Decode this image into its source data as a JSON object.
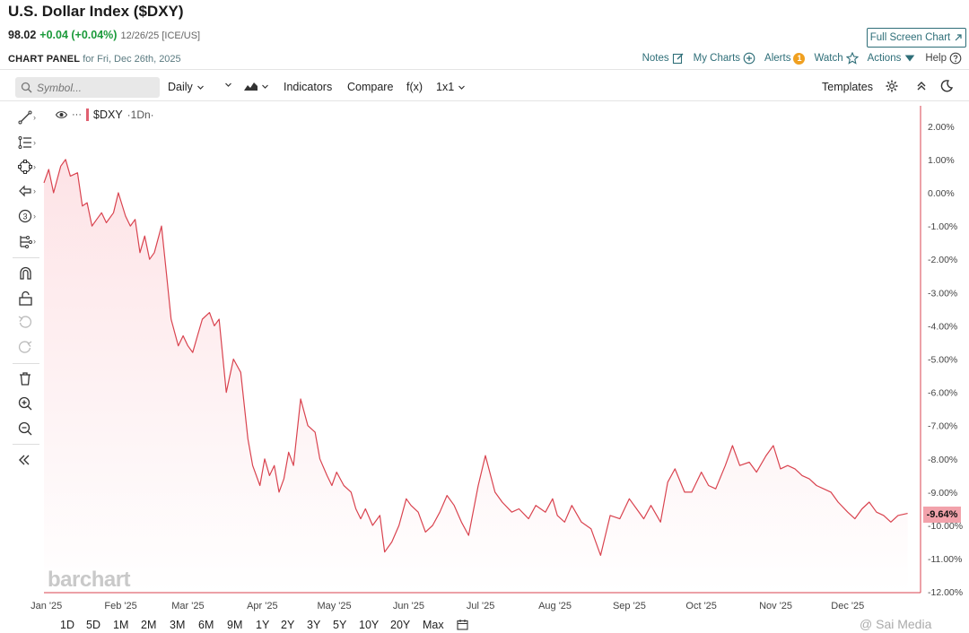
{
  "header": {
    "title": "U.S. Dollar Index ($DXY)",
    "last": "98.02",
    "change": "+0.04 (+0.04%)",
    "meta": "12/26/25 [ICE/US]",
    "fullscreen_label": "Full Screen Chart"
  },
  "panel": {
    "title": "CHART PANEL",
    "subtitle": "for Fri, Dec 26th, 2025",
    "links": {
      "notes": "Notes",
      "my_charts": "My Charts",
      "alerts": "Alerts",
      "alerts_count": "1",
      "watch": "Watch",
      "actions": "Actions",
      "help": "Help"
    }
  },
  "toolbar": {
    "symbol_placeholder": "Symbol...",
    "interval": "Daily",
    "indicators": "Indicators",
    "compare": "Compare",
    "fx": "f(x)",
    "layout": "1x1",
    "templates": "Templates"
  },
  "legend": {
    "symbol": "$DXY",
    "interval": "·1Dn·"
  },
  "watermark": "barchart",
  "price_tag": "-9.64%",
  "ranges": [
    "1D",
    "5D",
    "1M",
    "2M",
    "3M",
    "6M",
    "9M",
    "1Y",
    "2Y",
    "3Y",
    "5Y",
    "10Y",
    "20Y",
    "Max"
  ],
  "credit": "@ Sai Media",
  "colors": {
    "line": "#d9434f",
    "fill_top": "#fde3e6",
    "accent": "#2e6e78",
    "positive": "#1a9a3a"
  },
  "chart_data": {
    "type": "area",
    "title": "",
    "xlabel": "",
    "ylabel": "",
    "y_unit": "%",
    "ylim": [
      -12,
      2.5
    ],
    "y_ticks": [
      "2.00%",
      "1.00%",
      "0.00%",
      "-1.00%",
      "-2.00%",
      "-3.00%",
      "-4.00%",
      "-5.00%",
      "-6.00%",
      "-7.00%",
      "-8.00%",
      "-9.00%",
      "-10.00%",
      "-11.00%",
      "-12.00%"
    ],
    "y_tick_values": [
      2,
      1,
      0,
      -1,
      -2,
      -3,
      -4,
      -5,
      -6,
      -7,
      -8,
      -9,
      -10,
      -11,
      -12
    ],
    "x_ticks": [
      "Jan '25",
      "Feb '25",
      "Mar '25",
      "Apr '25",
      "May '25",
      "Jun '25",
      "Jul '25",
      "Aug '25",
      "Sep '25",
      "Oct '25",
      "Nov '25",
      "Dec '25"
    ],
    "x_tick_dates": [
      "2025-01-01",
      "2025-02-01",
      "2025-03-01",
      "2025-04-01",
      "2025-05-01",
      "2025-06-01",
      "2025-07-01",
      "2025-08-01",
      "2025-09-01",
      "2025-10-01",
      "2025-11-01",
      "2025-12-01"
    ],
    "x_range": [
      "2024-12-31",
      "2025-12-31"
    ],
    "grid": false,
    "series": [
      {
        "name": "$DXY",
        "x": [
          "2024-12-31",
          "2025-01-02",
          "2025-01-04",
          "2025-01-07",
          "2025-01-09",
          "2025-01-11",
          "2025-01-14",
          "2025-01-16",
          "2025-01-18",
          "2025-01-20",
          "2025-01-22",
          "2025-01-24",
          "2025-01-26",
          "2025-01-29",
          "2025-01-31",
          "2025-02-03",
          "2025-02-05",
          "2025-02-07",
          "2025-02-09",
          "2025-02-11",
          "2025-02-13",
          "2025-02-15",
          "2025-02-18",
          "2025-02-20",
          "2025-02-22",
          "2025-02-25",
          "2025-02-27",
          "2025-03-01",
          "2025-03-03",
          "2025-03-05",
          "2025-03-07",
          "2025-03-10",
          "2025-03-12",
          "2025-03-14",
          "2025-03-17",
          "2025-03-20",
          "2025-03-23",
          "2025-03-26",
          "2025-03-28",
          "2025-03-31",
          "2025-04-02",
          "2025-04-04",
          "2025-04-06",
          "2025-04-08",
          "2025-04-10",
          "2025-04-12",
          "2025-04-14",
          "2025-04-17",
          "2025-04-20",
          "2025-04-23",
          "2025-04-25",
          "2025-04-28",
          "2025-04-30",
          "2025-05-02",
          "2025-05-05",
          "2025-05-08",
          "2025-05-10",
          "2025-05-12",
          "2025-05-14",
          "2025-05-17",
          "2025-05-20",
          "2025-05-22",
          "2025-05-25",
          "2025-05-28",
          "2025-05-31",
          "2025-06-02",
          "2025-06-05",
          "2025-06-08",
          "2025-06-11",
          "2025-06-14",
          "2025-06-17",
          "2025-06-20",
          "2025-06-23",
          "2025-06-26",
          "2025-06-30",
          "2025-07-03",
          "2025-07-07",
          "2025-07-10",
          "2025-07-14",
          "2025-07-17",
          "2025-07-21",
          "2025-07-24",
          "2025-07-28",
          "2025-07-31",
          "2025-08-02",
          "2025-08-05",
          "2025-08-08",
          "2025-08-12",
          "2025-08-16",
          "2025-08-20",
          "2025-08-24",
          "2025-08-28",
          "2025-09-01",
          "2025-09-04",
          "2025-09-07",
          "2025-09-10",
          "2025-09-14",
          "2025-09-17",
          "2025-09-20",
          "2025-09-24",
          "2025-09-27",
          "2025-10-01",
          "2025-10-04",
          "2025-10-07",
          "2025-10-11",
          "2025-10-14",
          "2025-10-17",
          "2025-10-21",
          "2025-10-24",
          "2025-10-28",
          "2025-10-31",
          "2025-11-03",
          "2025-11-06",
          "2025-11-09",
          "2025-11-12",
          "2025-11-15",
          "2025-11-18",
          "2025-11-21",
          "2025-11-24",
          "2025-11-27",
          "2025-12-01",
          "2025-12-04",
          "2025-12-07",
          "2025-12-10",
          "2025-12-13",
          "2025-12-16",
          "2025-12-19",
          "2025-12-22",
          "2025-12-26"
        ],
        "values": [
          0.3,
          0.7,
          0.0,
          0.8,
          1.0,
          0.5,
          0.6,
          -0.4,
          -0.3,
          -1.0,
          -0.8,
          -0.6,
          -0.9,
          -0.6,
          0.0,
          -0.7,
          -1.0,
          -0.8,
          -1.8,
          -1.3,
          -2.0,
          -1.8,
          -1.0,
          -2.4,
          -3.8,
          -4.6,
          -4.3,
          -4.6,
          -4.8,
          -4.3,
          -3.8,
          -3.6,
          -4.0,
          -3.8,
          -6.0,
          -5.0,
          -5.4,
          -7.4,
          -8.2,
          -8.8,
          -8.0,
          -8.5,
          -8.2,
          -9.0,
          -8.6,
          -7.8,
          -8.2,
          -6.2,
          -7.0,
          -7.2,
          -8.0,
          -8.5,
          -8.8,
          -8.4,
          -8.8,
          -9.0,
          -9.5,
          -9.8,
          -9.5,
          -10.0,
          -9.7,
          -10.8,
          -10.5,
          -10.0,
          -9.2,
          -9.4,
          -9.6,
          -10.2,
          -10.0,
          -9.6,
          -9.1,
          -9.4,
          -9.9,
          -10.3,
          -8.8,
          -7.9,
          -9.0,
          -9.3,
          -9.6,
          -9.5,
          -9.8,
          -9.4,
          -9.6,
          -9.2,
          -9.7,
          -9.9,
          -9.4,
          -9.9,
          -10.1,
          -10.9,
          -9.7,
          -9.8,
          -9.2,
          -9.5,
          -9.8,
          -9.4,
          -9.9,
          -8.7,
          -8.3,
          -9.0,
          -9.0,
          -8.4,
          -8.8,
          -8.9,
          -8.2,
          -7.6,
          -8.2,
          -8.1,
          -8.4,
          -7.9,
          -7.6,
          -8.3,
          -8.2,
          -8.3,
          -8.5,
          -8.6,
          -8.8,
          -8.9,
          -9.0,
          -9.3,
          -9.6,
          -9.8,
          -9.5,
          -9.3,
          -9.6,
          -9.7,
          -9.9,
          -9.7,
          -9.64
        ]
      }
    ]
  }
}
